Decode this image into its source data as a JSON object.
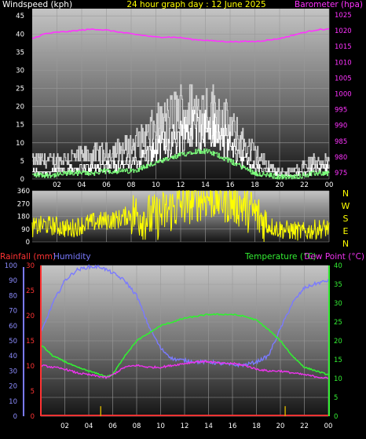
{
  "header": {
    "left_label": "Windspeed (kph)",
    "center_label": "24 hour graph day : 12 June 2025",
    "right_label": "Barometer (hpa)"
  },
  "bottom_header": {
    "rainfall_label": "Rainfall (mm)",
    "humidity_label": "Humidity",
    "temperature_label": "Temperature (°C)",
    "dewpoint_label": "Dew Point (°C)"
  },
  "compass_labels": [
    "N",
    "W",
    "S",
    "E",
    "N"
  ],
  "colors": {
    "windspeed": "#ffffff",
    "gust": "#cfcfcf",
    "avg_wind": "#7cff7c",
    "barometer": "#ff33ff",
    "direction": "#ffff00",
    "rainfall": "#ff3333",
    "humidity": "#7a7aff",
    "temperature": "#33ee33",
    "dewpoint": "#ee33ee",
    "rain_marks": "#ccaa00"
  },
  "chart_data": [
    {
      "type": "line",
      "x_ticks": [
        "02",
        "04",
        "06",
        "08",
        "10",
        "12",
        "14",
        "16",
        "18",
        "20",
        "22",
        "00"
      ],
      "y_left_ticks": [
        "0",
        "5",
        "10",
        "15",
        "20",
        "25",
        "30",
        "35",
        "40",
        "45"
      ],
      "y_right_ticks": [
        "975",
        "980",
        "985",
        "990",
        "995",
        "1000",
        "1005",
        "1010",
        "1015",
        "1020",
        "1025"
      ],
      "ylim_left": [
        0,
        47
      ],
      "ylim_right": [
        973,
        1027
      ],
      "series": [
        {
          "name": "Windspeed (kph)",
          "axis": "left",
          "x": [
            0,
            1,
            2,
            3,
            4,
            5,
            6,
            7,
            8,
            9,
            10,
            11,
            12,
            13,
            14,
            15,
            16,
            17,
            18,
            19,
            20,
            21,
            22,
            23,
            24
          ],
          "values": [
            2,
            2,
            2,
            3,
            3,
            3,
            4,
            4,
            4,
            6,
            8,
            10,
            12,
            14,
            14,
            12,
            9,
            6,
            3,
            2,
            1,
            1,
            2,
            3,
            3
          ]
        },
        {
          "name": "Gust",
          "axis": "left",
          "x": [
            0,
            1,
            2,
            3,
            4,
            5,
            6,
            7,
            8,
            9,
            10,
            11,
            12,
            13,
            14,
            15,
            16,
            17,
            18,
            19,
            20,
            21,
            22,
            23,
            24
          ],
          "values": [
            5,
            5,
            5,
            6,
            6,
            7,
            7,
            8,
            9,
            11,
            14,
            16,
            19,
            19,
            19,
            18,
            14,
            10,
            7,
            4,
            2,
            2,
            4,
            5,
            5
          ]
        },
        {
          "name": "Barometer (hpa)",
          "axis": "right",
          "x": [
            0,
            1,
            2,
            3,
            4,
            5,
            6,
            7,
            8,
            9,
            10,
            11,
            12,
            13,
            14,
            15,
            16,
            17,
            18,
            19,
            20,
            21,
            22,
            23,
            24
          ],
          "values": [
            1017.5,
            1019,
            1019.5,
            1019.8,
            1020.2,
            1020.5,
            1020.2,
            1019.6,
            1019,
            1018.5,
            1018,
            1018,
            1017.8,
            1017.2,
            1017,
            1016.7,
            1016.5,
            1016.6,
            1016.6,
            1017,
            1017.5,
            1018.5,
            1019.5,
            1020.3,
            1020.5
          ]
        }
      ]
    },
    {
      "type": "line",
      "y_ticks": [
        "0",
        "90",
        "180",
        "270",
        "360"
      ],
      "ylim": [
        0,
        360
      ],
      "series": [
        {
          "name": "Wind direction",
          "x": [
            0,
            1,
            2,
            3,
            4,
            5,
            6,
            7,
            8,
            9,
            10,
            11,
            12,
            13,
            14,
            15,
            16,
            17,
            18,
            19,
            20,
            21,
            22,
            23,
            24
          ],
          "values": [
            100,
            120,
            110,
            90,
            120,
            140,
            150,
            160,
            200,
            180,
            170,
            220,
            260,
            300,
            320,
            310,
            290,
            260,
            200,
            120,
            90,
            80,
            70,
            90,
            100
          ]
        }
      ]
    },
    {
      "type": "line",
      "x_ticks": [
        "02",
        "04",
        "06",
        "08",
        "10",
        "12",
        "14",
        "16",
        "18",
        "20",
        "22",
        "00"
      ],
      "y_left_ticks": [
        "0",
        "10",
        "20",
        "30",
        "40",
        "50",
        "60",
        "70",
        "80",
        "90",
        "100"
      ],
      "y_rain_ticks": [
        "0",
        "5",
        "10",
        "15",
        "20",
        "25",
        "30"
      ],
      "y_right_ticks": [
        "0",
        "5",
        "10",
        "15",
        "20",
        "25",
        "30",
        "35",
        "40"
      ],
      "ylim_left": [
        0,
        100
      ],
      "ylim_rain": [
        0,
        30
      ],
      "ylim_right": [
        0,
        40
      ],
      "series": [
        {
          "name": "Humidity",
          "axis": "left",
          "x": [
            0,
            1,
            2,
            3,
            4,
            5,
            5.5,
            6,
            7,
            8,
            9,
            10,
            11,
            12,
            13,
            14,
            15,
            16,
            17,
            18,
            19,
            20,
            21,
            22,
            23,
            24
          ],
          "values": [
            55,
            75,
            90,
            97,
            99,
            99,
            97,
            95,
            90,
            80,
            60,
            45,
            38,
            37,
            36,
            36,
            35,
            34,
            34,
            36,
            40,
            58,
            75,
            85,
            88,
            90
          ]
        },
        {
          "name": "Temperature (°C)",
          "axis": "right",
          "x": [
            0,
            1,
            2,
            3,
            4,
            5,
            5.5,
            6,
            7,
            8,
            9,
            10,
            11,
            12,
            13,
            14,
            15,
            16,
            17,
            18,
            19,
            20,
            21,
            22,
            23,
            24
          ],
          "values": [
            19,
            16,
            14.5,
            13,
            12,
            11,
            10.5,
            11,
            16,
            20,
            22,
            24,
            25,
            26,
            26.5,
            27,
            27,
            27,
            26.5,
            25.5,
            23,
            20,
            16,
            13,
            12,
            11
          ]
        },
        {
          "name": "Dew Point (°C)",
          "axis": "right",
          "x": [
            0,
            1,
            2,
            3,
            4,
            5,
            5.5,
            6,
            7,
            8,
            9,
            10,
            11,
            12,
            13,
            14,
            15,
            16,
            17,
            18,
            19,
            20,
            21,
            22,
            23,
            24
          ],
          "values": [
            13.5,
            13,
            12.5,
            11.5,
            11,
            10.5,
            10.2,
            11,
            13,
            13.5,
            13,
            13,
            13.5,
            14,
            14.5,
            14.5,
            14,
            14,
            13.5,
            12.5,
            12,
            12,
            11.5,
            11,
            10.5,
            10
          ]
        },
        {
          "name": "Rainfall (mm)",
          "axis": "rain",
          "x": [
            0,
            24
          ],
          "values": [
            0,
            0
          ]
        }
      ],
      "rain_events": [
        {
          "x": 5.0,
          "value": 2
        },
        {
          "x": 20.4,
          "value": 2
        }
      ]
    }
  ]
}
